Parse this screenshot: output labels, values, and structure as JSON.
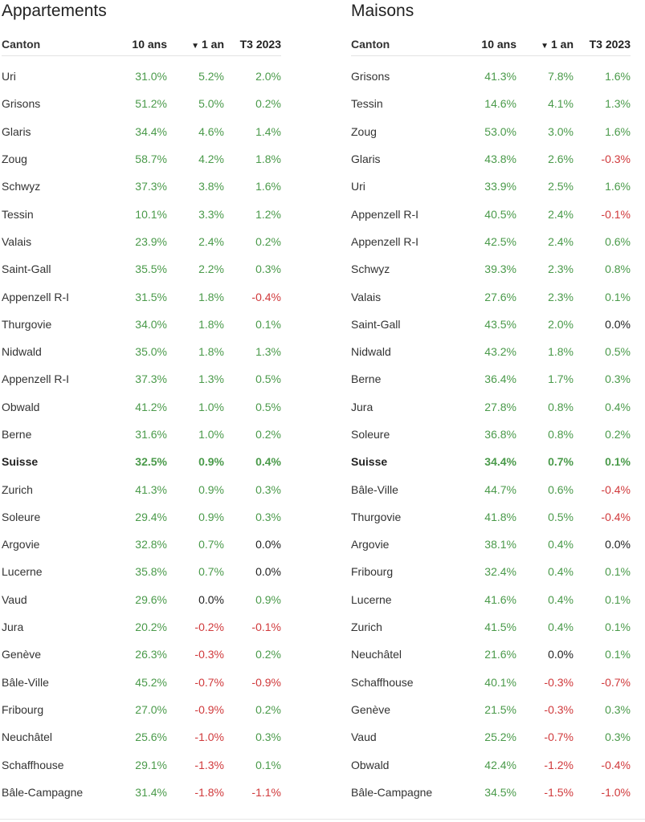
{
  "colors": {
    "positive": "#4a9a4a",
    "negative": "#d0393b",
    "neutral": "#222222"
  },
  "headers": {
    "canton": "Canton",
    "ten_years": "10 ans",
    "one_year": "1 an",
    "quarter": "T3 2023",
    "sort_icon": "▼"
  },
  "left": {
    "title": "Appartements",
    "rows": [
      {
        "canton": "Uri",
        "y10": "31.0%",
        "y1": "5.2%",
        "t3": "2.0%"
      },
      {
        "canton": "Grisons",
        "y10": "51.2%",
        "y1": "5.0%",
        "t3": "0.2%"
      },
      {
        "canton": "Glaris",
        "y10": "34.4%",
        "y1": "4.6%",
        "t3": "1.4%"
      },
      {
        "canton": "Zoug",
        "y10": "58.7%",
        "y1": "4.2%",
        "t3": "1.8%"
      },
      {
        "canton": "Schwyz",
        "y10": "37.3%",
        "y1": "3.8%",
        "t3": "1.6%"
      },
      {
        "canton": "Tessin",
        "y10": "10.1%",
        "y1": "3.3%",
        "t3": "1.2%"
      },
      {
        "canton": "Valais",
        "y10": "23.9%",
        "y1": "2.4%",
        "t3": "0.2%"
      },
      {
        "canton": "Saint-Gall",
        "y10": "35.5%",
        "y1": "2.2%",
        "t3": "0.3%"
      },
      {
        "canton": "Appenzell R-I",
        "y10": "31.5%",
        "y1": "1.8%",
        "t3": "-0.4%"
      },
      {
        "canton": "Thurgovie",
        "y10": "34.0%",
        "y1": "1.8%",
        "t3": "0.1%"
      },
      {
        "canton": "Nidwald",
        "y10": "35.0%",
        "y1": "1.8%",
        "t3": "1.3%"
      },
      {
        "canton": "Appenzell R-I",
        "y10": "37.3%",
        "y1": "1.3%",
        "t3": "0.5%"
      },
      {
        "canton": "Obwald",
        "y10": "41.2%",
        "y1": "1.0%",
        "t3": "0.5%"
      },
      {
        "canton": "Berne",
        "y10": "31.6%",
        "y1": "1.0%",
        "t3": "0.2%"
      },
      {
        "canton": "Suisse",
        "y10": "32.5%",
        "y1": "0.9%",
        "t3": "0.4%",
        "bold": true
      },
      {
        "canton": "Zurich",
        "y10": "41.3%",
        "y1": "0.9%",
        "t3": "0.3%"
      },
      {
        "canton": "Soleure",
        "y10": "29.4%",
        "y1": "0.9%",
        "t3": "0.3%"
      },
      {
        "canton": "Argovie",
        "y10": "32.8%",
        "y1": "0.7%",
        "t3": "0.0%"
      },
      {
        "canton": "Lucerne",
        "y10": "35.8%",
        "y1": "0.7%",
        "t3": "0.0%"
      },
      {
        "canton": "Vaud",
        "y10": "29.6%",
        "y1": "0.0%",
        "t3": "0.9%"
      },
      {
        "canton": "Jura",
        "y10": "20.2%",
        "y1": "-0.2%",
        "t3": "-0.1%"
      },
      {
        "canton": "Genève",
        "y10": "26.3%",
        "y1": "-0.3%",
        "t3": "0.2%"
      },
      {
        "canton": "Bâle-Ville",
        "y10": "45.2%",
        "y1": "-0.7%",
        "t3": "-0.9%"
      },
      {
        "canton": "Fribourg",
        "y10": "27.0%",
        "y1": "-0.9%",
        "t3": "0.2%"
      },
      {
        "canton": "Neuchâtel",
        "y10": "25.6%",
        "y1": "-1.0%",
        "t3": "0.3%"
      },
      {
        "canton": "Schaffhouse",
        "y10": "29.1%",
        "y1": "-1.3%",
        "t3": "0.1%"
      },
      {
        "canton": "Bâle-Campagne",
        "y10": "31.4%",
        "y1": "-1.8%",
        "t3": "-1.1%"
      }
    ]
  },
  "right": {
    "title": "Maisons",
    "rows": [
      {
        "canton": "Grisons",
        "y10": "41.3%",
        "y1": "7.8%",
        "t3": "1.6%"
      },
      {
        "canton": "Tessin",
        "y10": "14.6%",
        "y1": "4.1%",
        "t3": "1.3%"
      },
      {
        "canton": "Zoug",
        "y10": "53.0%",
        "y1": "3.0%",
        "t3": "1.6%"
      },
      {
        "canton": "Glaris",
        "y10": "43.8%",
        "y1": "2.6%",
        "t3": "-0.3%"
      },
      {
        "canton": "Uri",
        "y10": "33.9%",
        "y1": "2.5%",
        "t3": "1.6%"
      },
      {
        "canton": "Appenzell R-I",
        "y10": "40.5%",
        "y1": "2.4%",
        "t3": "-0.1%"
      },
      {
        "canton": "Appenzell R-I",
        "y10": "42.5%",
        "y1": "2.4%",
        "t3": "0.6%"
      },
      {
        "canton": "Schwyz",
        "y10": "39.3%",
        "y1": "2.3%",
        "t3": "0.8%"
      },
      {
        "canton": "Valais",
        "y10": "27.6%",
        "y1": "2.3%",
        "t3": "0.1%"
      },
      {
        "canton": "Saint-Gall",
        "y10": "43.5%",
        "y1": "2.0%",
        "t3": "0.0%"
      },
      {
        "canton": "Nidwald",
        "y10": "43.2%",
        "y1": "1.8%",
        "t3": "0.5%"
      },
      {
        "canton": "Berne",
        "y10": "36.4%",
        "y1": "1.7%",
        "t3": "0.3%"
      },
      {
        "canton": "Jura",
        "y10": "27.8%",
        "y1": "0.8%",
        "t3": "0.4%"
      },
      {
        "canton": "Soleure",
        "y10": "36.8%",
        "y1": "0.8%",
        "t3": "0.2%"
      },
      {
        "canton": "Suisse",
        "y10": "34.4%",
        "y1": "0.7%",
        "t3": "0.1%",
        "bold": true
      },
      {
        "canton": "Bâle-Ville",
        "y10": "44.7%",
        "y1": "0.6%",
        "t3": "-0.4%"
      },
      {
        "canton": "Thurgovie",
        "y10": "41.8%",
        "y1": "0.5%",
        "t3": "-0.4%"
      },
      {
        "canton": "Argovie",
        "y10": "38.1%",
        "y1": "0.4%",
        "t3": "0.0%"
      },
      {
        "canton": "Fribourg",
        "y10": "32.4%",
        "y1": "0.4%",
        "t3": "0.1%"
      },
      {
        "canton": "Lucerne",
        "y10": "41.6%",
        "y1": "0.4%",
        "t3": "0.1%"
      },
      {
        "canton": "Zurich",
        "y10": "41.5%",
        "y1": "0.4%",
        "t3": "0.1%"
      },
      {
        "canton": "Neuchâtel",
        "y10": "21.6%",
        "y1": "0.0%",
        "t3": "0.1%"
      },
      {
        "canton": "Schaffhouse",
        "y10": "40.1%",
        "y1": "-0.3%",
        "t3": "-0.7%"
      },
      {
        "canton": "Genève",
        "y10": "21.5%",
        "y1": "-0.3%",
        "t3": "0.3%"
      },
      {
        "canton": "Vaud",
        "y10": "25.2%",
        "y1": "-0.7%",
        "t3": "0.3%"
      },
      {
        "canton": "Obwald",
        "y10": "42.4%",
        "y1": "-1.2%",
        "t3": "-0.4%"
      },
      {
        "canton": "Bâle-Campagne",
        "y10": "34.5%",
        "y1": "-1.5%",
        "t3": "-1.0%"
      }
    ]
  }
}
